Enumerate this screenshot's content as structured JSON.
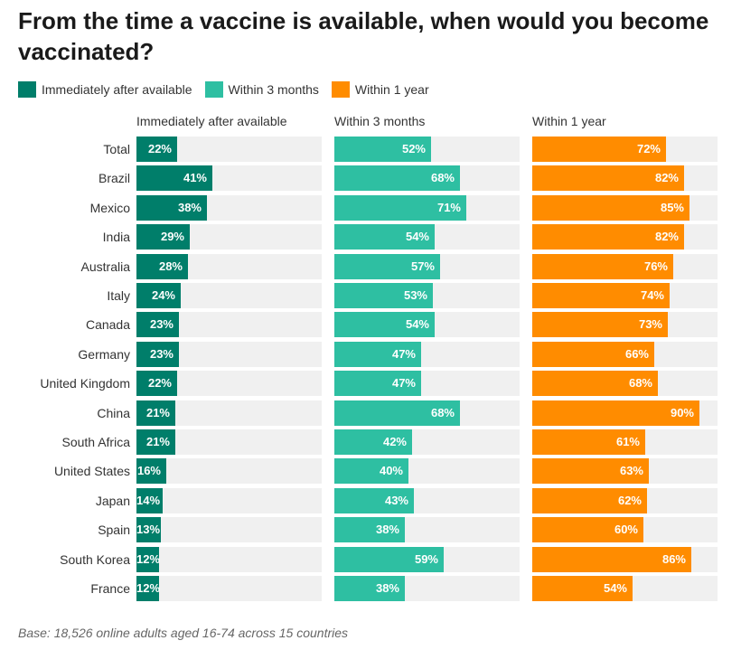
{
  "title": "From the time a vaccine is available, when would you become vaccinated?",
  "footnote": "Base: 18,526 online adults aged 16-74 across 15 countries",
  "colors": {
    "immediately": "#007e6a",
    "within3": "#2ebfa2",
    "within1year": "#ff8c00",
    "track": "#f0f0f0"
  },
  "chart_data": {
    "type": "bar",
    "orientation": "horizontal",
    "value_suffix": "%",
    "xlim": [
      0,
      100
    ],
    "legend": [
      "Immediately after available",
      "Within 3 months",
      "Within 1 year"
    ],
    "categories": [
      "Total",
      "Brazil",
      "Mexico",
      "India",
      "Australia",
      "Italy",
      "Canada",
      "Germany",
      "United Kingdom",
      "China",
      "South Africa",
      "United States",
      "Japan",
      "Spain",
      "South Korea",
      "France"
    ],
    "series": [
      {
        "name": "Immediately after available",
        "color": "#007e6a",
        "values": [
          22,
          41,
          38,
          29,
          28,
          24,
          23,
          23,
          22,
          21,
          21,
          16,
          14,
          13,
          12,
          12
        ]
      },
      {
        "name": "Within 3 months",
        "color": "#2ebfa2",
        "values": [
          52,
          68,
          71,
          54,
          57,
          53,
          54,
          47,
          47,
          68,
          42,
          40,
          43,
          38,
          59,
          38
        ]
      },
      {
        "name": "Within 1 year",
        "color": "#ff8c00",
        "values": [
          72,
          82,
          85,
          82,
          76,
          74,
          73,
          66,
          68,
          90,
          61,
          63,
          62,
          60,
          86,
          54
        ]
      }
    ]
  }
}
